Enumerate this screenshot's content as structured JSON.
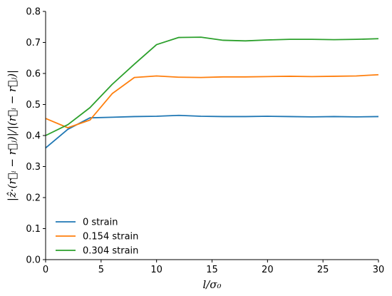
{
  "chart_data": {
    "type": "line",
    "xlabel": "l/σ₀",
    "ylabel": "|ẑ·(r⃗ᵢ − r⃗ⱼ)|/|(r⃗ᵢ − r⃗ⱼ)|",
    "xlim": [
      0,
      30
    ],
    "ylim": [
      0.0,
      0.8
    ],
    "xticks": [
      0,
      5,
      10,
      15,
      20,
      25,
      30
    ],
    "yticks": [
      0.0,
      0.1,
      0.2,
      0.3,
      0.4,
      0.5,
      0.6,
      0.7,
      0.8
    ],
    "xtick_labels": [
      "0",
      "5",
      "10",
      "15",
      "20",
      "25",
      "30"
    ],
    "ytick_labels": [
      "0.0",
      "0.1",
      "0.2",
      "0.3",
      "0.4",
      "0.5",
      "0.6",
      "0.7",
      "0.8"
    ],
    "grid": false,
    "legend": "lower-left",
    "series": [
      {
        "name": "0 strain",
        "color": "#1f77b4",
        "x": [
          0,
          2,
          4,
          6,
          8,
          10,
          12,
          14,
          16,
          18,
          20,
          22,
          24,
          26,
          28,
          30
        ],
        "y": [
          0.36,
          0.42,
          0.457,
          0.459,
          0.461,
          0.462,
          0.465,
          0.462,
          0.461,
          0.461,
          0.462,
          0.461,
          0.46,
          0.461,
          0.46,
          0.461
        ]
      },
      {
        "name": "0.154 strain",
        "color": "#ff7f0e",
        "x": [
          0,
          2,
          4,
          6,
          8,
          10,
          12,
          14,
          16,
          18,
          20,
          22,
          24,
          26,
          28,
          30
        ],
        "y": [
          0.455,
          0.425,
          0.45,
          0.535,
          0.587,
          0.592,
          0.588,
          0.587,
          0.589,
          0.589,
          0.59,
          0.591,
          0.59,
          0.591,
          0.592,
          0.596
        ]
      },
      {
        "name": "0.304 strain",
        "color": "#2ca02c",
        "x": [
          0,
          2,
          4,
          6,
          8,
          10,
          12,
          14,
          16,
          18,
          20,
          22,
          24,
          26,
          28,
          30
        ],
        "y": [
          0.4,
          0.435,
          0.49,
          0.565,
          0.63,
          0.693,
          0.716,
          0.717,
          0.707,
          0.705,
          0.708,
          0.71,
          0.71,
          0.709,
          0.71,
          0.712
        ]
      }
    ]
  }
}
